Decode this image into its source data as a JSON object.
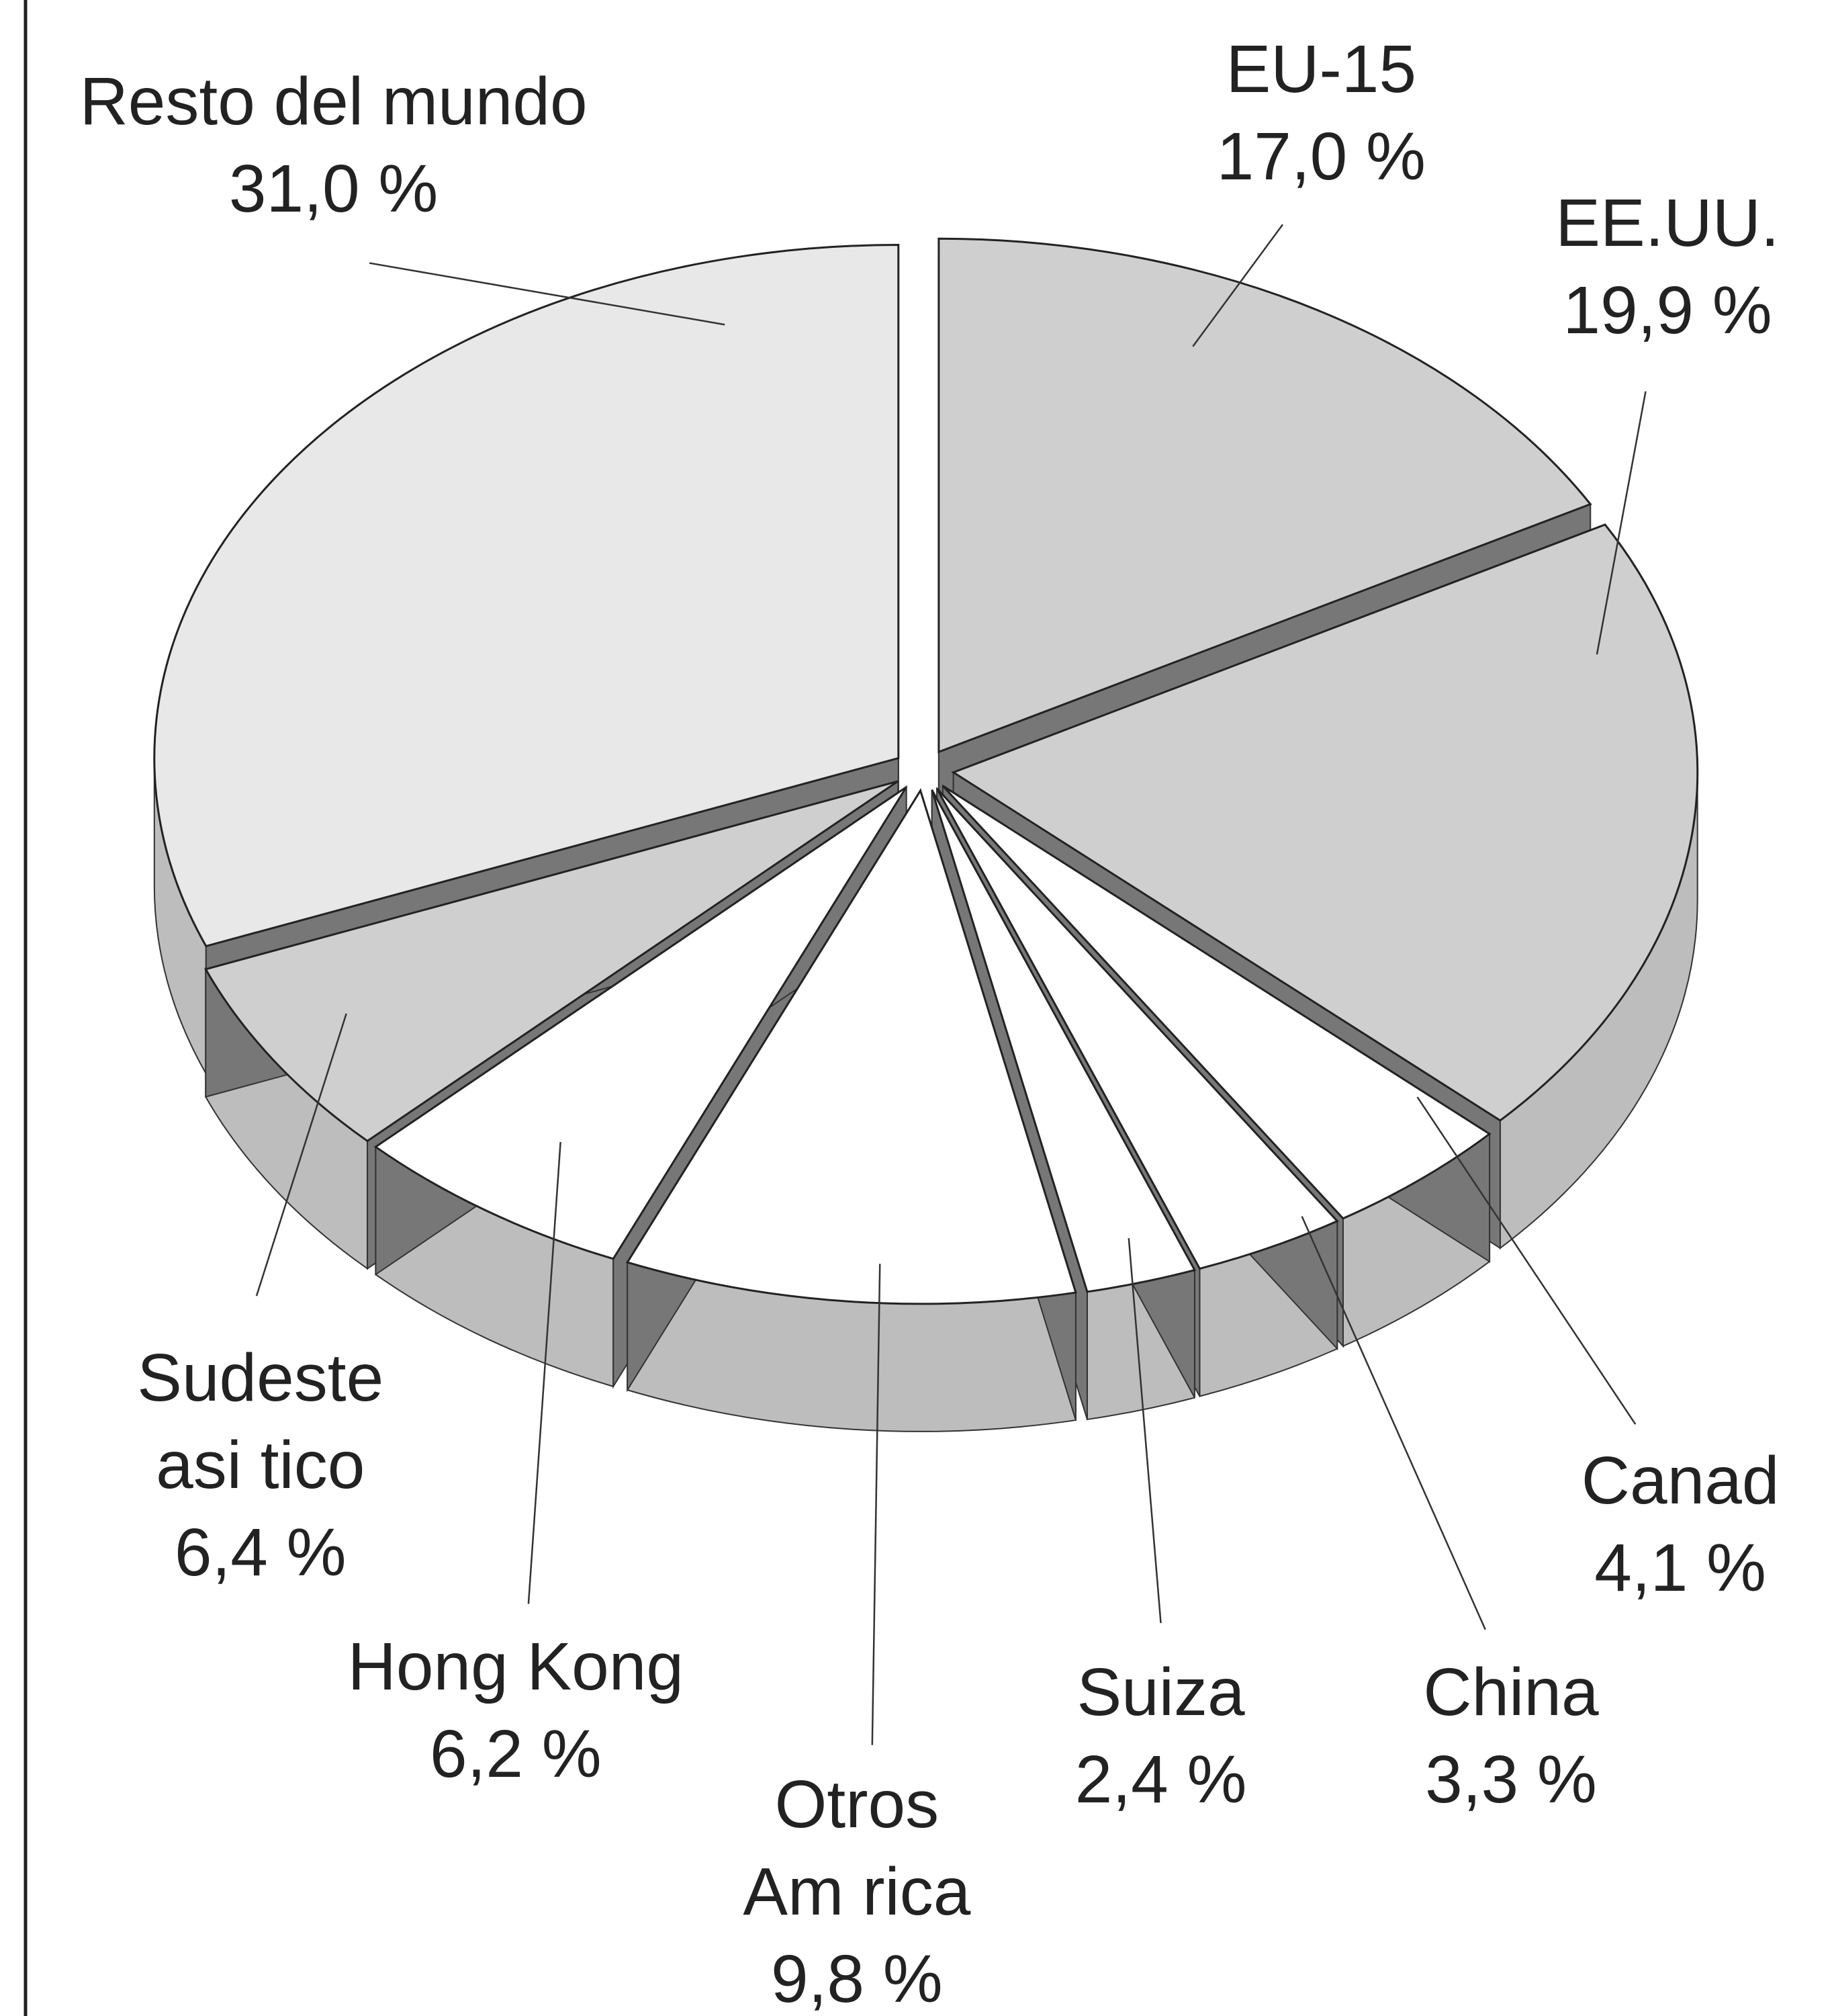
{
  "chart_data": {
    "type": "pie",
    "categories": [
      "EU-15",
      "EE.UU.",
      "Canad",
      "China",
      "Suiza",
      "Otros\nAm rica",
      "Hong Kong",
      "Sudeste\nasi tico",
      "Resto del mundo"
    ],
    "values": [
      17.0,
      19.9,
      4.1,
      3.3,
      2.4,
      9.8,
      6.2,
      6.4,
      31.0
    ],
    "value_labels": [
      "17,0 %",
      "19,9 %",
      "4,1 %",
      "3,3 %",
      "2,4 %",
      "9,8 %",
      "6,2 %",
      "6,4 %",
      "31,0 %"
    ],
    "colors": [
      "#cfcfcf",
      "#cfcfcf",
      "#ffffff",
      "#ffffff",
      "#ffffff",
      "#ffffff",
      "#ffffff",
      "#cfcfcf",
      "#e8e8e8"
    ]
  }
}
